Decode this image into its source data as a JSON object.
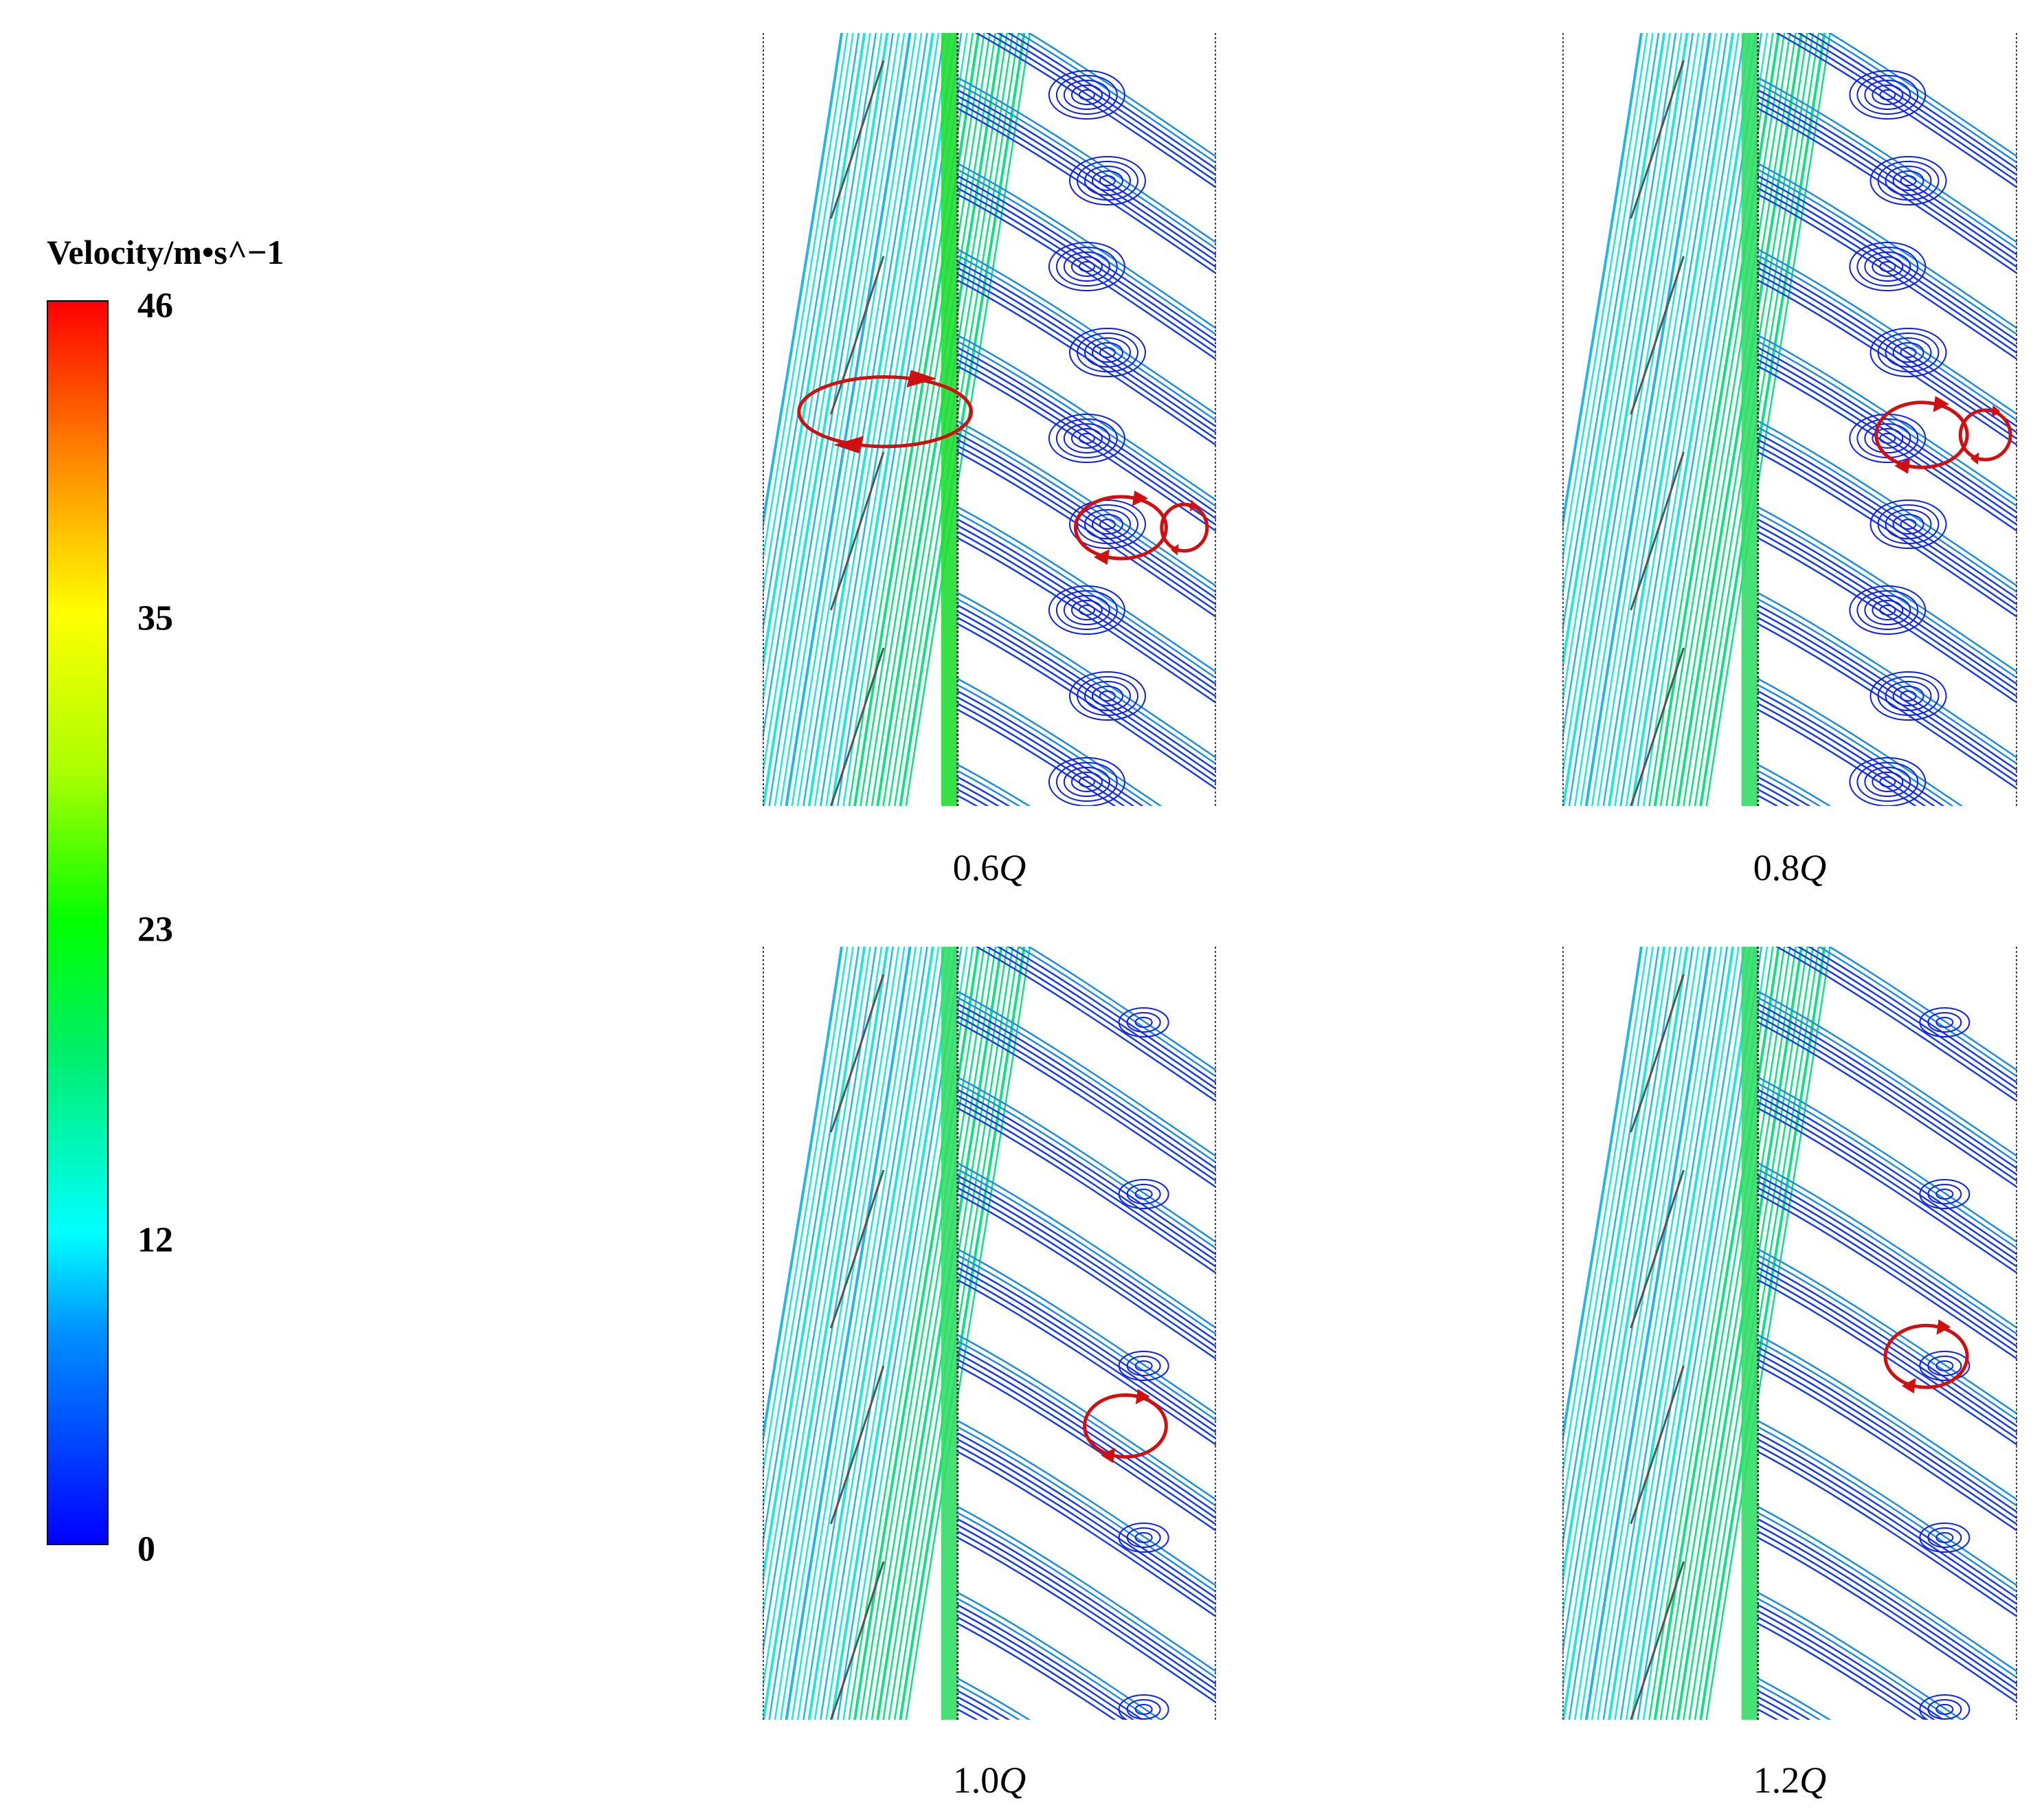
{
  "legend": {
    "title": "Velocity/m•s^−1",
    "ticks": [
      "46",
      "35",
      "23",
      "12",
      "0"
    ],
    "colors": [
      "#0000ff",
      "#00ffff",
      "#00ff00",
      "#ffff00",
      "#ff0000"
    ]
  },
  "panels": [
    {
      "id": "p06",
      "num": "0.6",
      "sym": "Q",
      "vortices": 3
    },
    {
      "id": "p08",
      "num": "0.8",
      "sym": "Q",
      "vortices": 2
    },
    {
      "id": "p10",
      "num": "1.0",
      "sym": "Q",
      "vortices": 1
    },
    {
      "id": "p12",
      "num": "1.2",
      "sym": "Q",
      "vortices": 1
    }
  ]
}
